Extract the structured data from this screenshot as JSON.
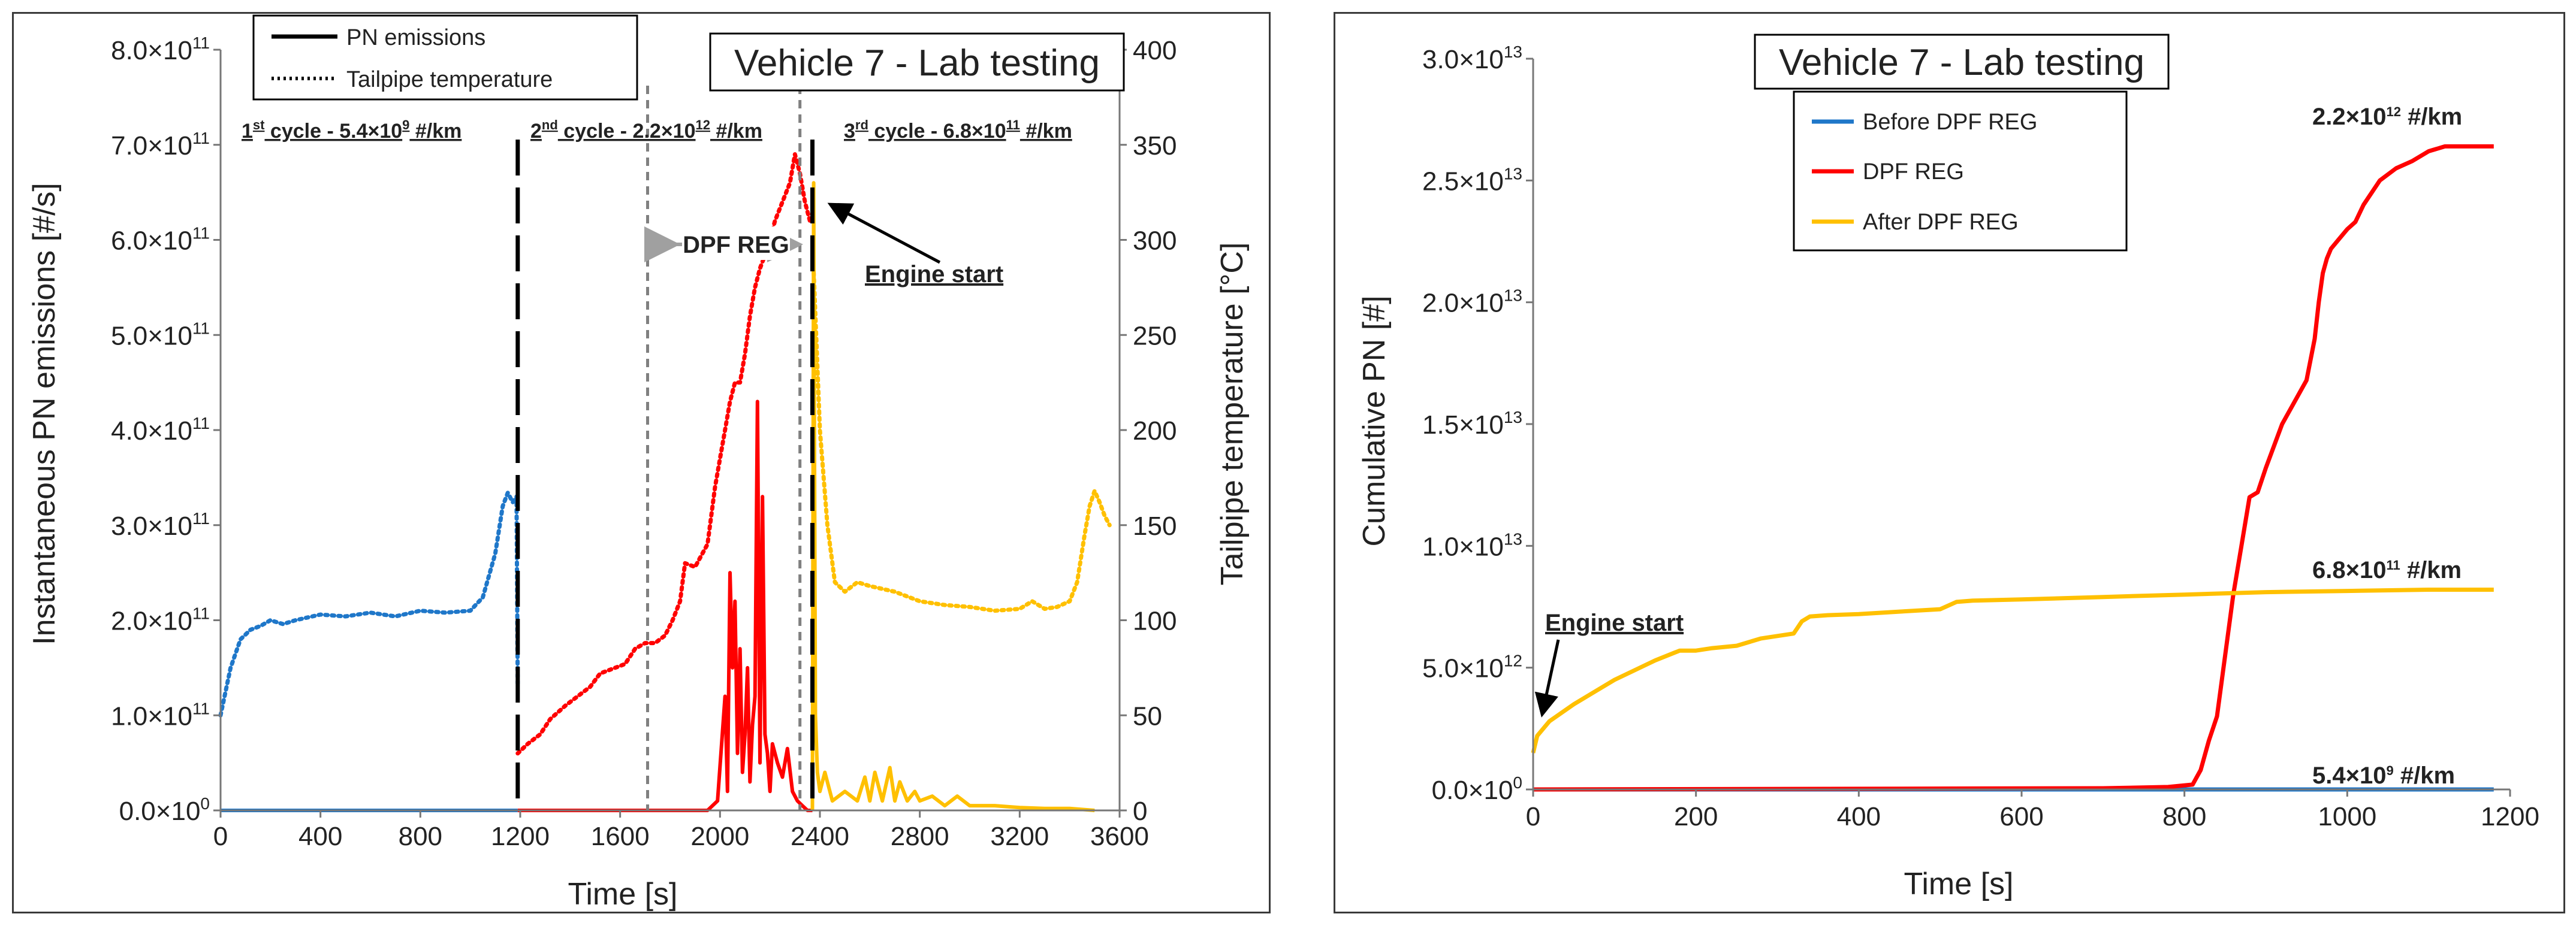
{
  "colors": {
    "blue": "#1f77c9",
    "red": "#ff0000",
    "yellow": "#ffc000",
    "black": "#000000",
    "gray": "#808080"
  },
  "chart_data": [
    {
      "type": "line",
      "title": "Vehicle 7 - Lab testing",
      "xlabel": "Time [s]",
      "ylabel": "Instantaneous PN emissions [#/s]",
      "y2label": "Tailpipe temperature [°C]",
      "xlim": [
        0,
        3600
      ],
      "ylim": [
        0,
        800000000000.0
      ],
      "y2lim": [
        0,
        400
      ],
      "x_ticks": [
        "0",
        "400",
        "800",
        "1200",
        "1600",
        "2000",
        "2400",
        "2800",
        "3200",
        "3600"
      ],
      "y_ticks": [
        {
          "m": "0.0×10",
          "e": "0"
        },
        {
          "m": "1.0×10",
          "e": "11"
        },
        {
          "m": "2.0×10",
          "e": "11"
        },
        {
          "m": "3.0×10",
          "e": "11"
        },
        {
          "m": "4.0×10",
          "e": "11"
        },
        {
          "m": "5.0×10",
          "e": "11"
        },
        {
          "m": "6.0×10",
          "e": "11"
        },
        {
          "m": "7.0×10",
          "e": "11"
        },
        {
          "m": "8.0×10",
          "e": "11"
        }
      ],
      "y2_ticks": [
        "0",
        "50",
        "100",
        "150",
        "200",
        "250",
        "300",
        "350",
        "400"
      ],
      "legend": [
        {
          "label": "PN emissions",
          "style": "solid"
        },
        {
          "label": "Tailpipe temperature",
          "style": "dotted"
        }
      ],
      "cycle_labels": [
        {
          "pre": "1",
          "sup": "st",
          "mid": " cycle - 5.4×10",
          "exp": "9",
          "post": " #/km",
          "color": "#1f77c9"
        },
        {
          "pre": "2",
          "sup": "nd",
          "mid": " cycle - 2.2×10",
          "exp": "12",
          "post": " #/km",
          "color": "#ff0000"
        },
        {
          "pre": "3",
          "sup": "rd",
          "mid": " cycle - 6.8×10",
          "exp": "11",
          "post": " #/km",
          "color": "#ffc000"
        }
      ],
      "annotations": {
        "dpf_reg": "DPF REG",
        "engine_start": "Engine start"
      },
      "cycle_boundaries": [
        1190,
        2370
      ],
      "dpf_reg_bounds": [
        1710,
        2320
      ],
      "series": [
        {
          "name": "PN emissions - 1st cycle",
          "axis": "y",
          "style": "solid",
          "color": "#1f77c9",
          "x": [
            0,
            1190
          ],
          "values": [
            0,
            0
          ]
        },
        {
          "name": "PN emissions - 2nd cycle",
          "axis": "y",
          "style": "solid",
          "color": "#ff0000",
          "x": [
            1190,
            1950,
            1990,
            2020,
            2030,
            2040,
            2050,
            2060,
            2070,
            2080,
            2090,
            2100,
            2110,
            2120,
            2130,
            2140,
            2150,
            2160,
            2170,
            2180,
            2190,
            2200,
            2210,
            2230,
            2250,
            2270,
            2290,
            2310,
            2330,
            2350,
            2370
          ],
          "values": [
            0,
            0,
            10000000000.0,
            120000000000.0,
            20000000000.0,
            250000000000.0,
            150000000000.0,
            220000000000.0,
            60000000000.0,
            170000000000.0,
            40000000000.0,
            80000000000.0,
            150000000000.0,
            30000000000.0,
            90000000000.0,
            120000000000.0,
            430000000000.0,
            50000000000.0,
            330000000000.0,
            80000000000.0,
            60000000000.0,
            20000000000.0,
            70000000000.0,
            50000000000.0,
            35000000000.0,
            65000000000.0,
            20000000000.0,
            10000000000.0,
            5000000000.0,
            0,
            0
          ]
        },
        {
          "name": "PN emissions - 3rd cycle",
          "axis": "y",
          "style": "solid",
          "color": "#ffc000",
          "x": [
            2370,
            2375,
            2378,
            2382,
            2390,
            2400,
            2420,
            2450,
            2500,
            2550,
            2580,
            2600,
            2620,
            2650,
            2680,
            2700,
            2720,
            2750,
            2780,
            2800,
            2850,
            2900,
            2950,
            3000,
            3100,
            3200,
            3300,
            3400,
            3500
          ],
          "values": [
            0,
            660000000000.0,
            400000000000.0,
            100000000000.0,
            40000000000.0,
            20000000000.0,
            40000000000.0,
            10000000000.0,
            20000000000.0,
            10000000000.0,
            35000000000.0,
            10000000000.0,
            40000000000.0,
            10000000000.0,
            45000000000.0,
            10000000000.0,
            30000000000.0,
            10000000000.0,
            20000000000.0,
            10000000000.0,
            15000000000.0,
            5000000000.0,
            15000000000.0,
            5000000000.0,
            5000000000.0,
            3000000000.0,
            2000000000.0,
            2000000000.0,
            0
          ]
        },
        {
          "name": "Tailpipe temperature - 1st cycle",
          "axis": "y2",
          "style": "dotted",
          "color": "#1f77c9",
          "x": [
            0,
            40,
            80,
            120,
            160,
            200,
            250,
            300,
            400,
            500,
            600,
            700,
            800,
            900,
            1000,
            1050,
            1100,
            1130,
            1150,
            1170,
            1185,
            1190
          ],
          "values": [
            50,
            75,
            90,
            95,
            97,
            100,
            98,
            100,
            103,
            102,
            104,
            102,
            105,
            104,
            105,
            112,
            135,
            160,
            167,
            162,
            165,
            65
          ]
        },
        {
          "name": "Tailpipe temperature - 2nd cycle",
          "axis": "y2",
          "style": "dotted",
          "color": "#ff0000",
          "x": [
            1190,
            1230,
            1280,
            1320,
            1380,
            1430,
            1480,
            1520,
            1580,
            1620,
            1660,
            1700,
            1740,
            1780,
            1810,
            1840,
            1860,
            1900,
            1950,
            1980,
            2000,
            2020,
            2040,
            2060,
            2080,
            2100,
            2120,
            2140,
            2160,
            2180,
            2200,
            2220,
            2250,
            2280,
            2300,
            2320,
            2340,
            2360
          ],
          "values": [
            30,
            35,
            40,
            48,
            55,
            60,
            65,
            72,
            75,
            77,
            85,
            88,
            88,
            92,
            100,
            110,
            130,
            128,
            140,
            170,
            185,
            200,
            215,
            225,
            225,
            240,
            260,
            275,
            285,
            292,
            300,
            310,
            320,
            330,
            345,
            335,
            320,
            310
          ]
        },
        {
          "name": "Tailpipe temperature - 3rd cycle",
          "axis": "y2",
          "style": "dotted",
          "color": "#ffc000",
          "x": [
            2370,
            2400,
            2430,
            2460,
            2500,
            2550,
            2600,
            2700,
            2800,
            2900,
            3000,
            3100,
            3200,
            3250,
            3300,
            3350,
            3400,
            3430,
            3460,
            3480,
            3500,
            3520,
            3540,
            3560
          ],
          "values": [
            300,
            200,
            150,
            120,
            115,
            120,
            118,
            115,
            110,
            108,
            107,
            105,
            106,
            110,
            106,
            107,
            110,
            120,
            145,
            160,
            168,
            162,
            155,
            150
          ]
        }
      ]
    },
    {
      "type": "line",
      "title": "Vehicle 7 - Lab testing",
      "xlabel": "Time [s]",
      "ylabel": "Cumulative PN [#]",
      "xlim": [
        0,
        1200
      ],
      "ylim": [
        0,
        30000000000000.0
      ],
      "x_ticks": [
        "0",
        "200",
        "400",
        "600",
        "800",
        "1000",
        "1200"
      ],
      "y_ticks": [
        {
          "m": "0.0×10",
          "e": "0"
        },
        {
          "m": "5.0×10",
          "e": "12"
        },
        {
          "m": "1.0×10",
          "e": "13"
        },
        {
          "m": "1.5×10",
          "e": "13"
        },
        {
          "m": "2.0×10",
          "e": "13"
        },
        {
          "m": "2.5×10",
          "e": "13"
        },
        {
          "m": "3.0×10",
          "e": "13"
        }
      ],
      "legend": [
        {
          "label": "Before DPF REG",
          "color": "#1f77c9"
        },
        {
          "label": "DPF REG",
          "color": "#ff0000"
        },
        {
          "label": "After DPF REG",
          "color": "#ffc000"
        }
      ],
      "end_labels": [
        {
          "m": "2.2×10",
          "e": "12",
          "u": " #/km",
          "color": "#ff0000"
        },
        {
          "m": "6.8×10",
          "e": "11",
          "u": " #/km",
          "color": "#ffc000"
        },
        {
          "m": "5.4×10",
          "e": "9",
          "u": " #/km",
          "color": "#1f77c9"
        }
      ],
      "annotations": {
        "engine_start": "Engine start"
      },
      "series": [
        {
          "name": "Before DPF REG",
          "color": "#1f77c9",
          "x": [
            0,
            1180
          ],
          "values": [
            0,
            0
          ]
        },
        {
          "name": "DPF REG",
          "color": "#ff0000",
          "x": [
            0,
            700,
            780,
            810,
            820,
            830,
            840,
            850,
            860,
            870,
            880,
            890,
            900,
            920,
            950,
            960,
            965,
            970,
            975,
            980,
            990,
            1000,
            1010,
            1020,
            1040,
            1060,
            1080,
            1100,
            1120,
            1180
          ],
          "values": [
            0,
            50000000000.0,
            100000000000.0,
            200000000000.0,
            800000000000.0,
            2000000000000.0,
            3000000000000.0,
            5500000000000.0,
            8000000000000.0,
            10000000000000.0,
            12000000000000.0,
            12200000000000.0,
            13200000000000.0,
            15000000000000.0,
            16800000000000.0,
            18500000000000.0,
            20000000000000.0,
            21200000000000.0,
            21800000000000.0,
            22200000000000.0,
            22600000000000.0,
            23000000000000.0,
            23300000000000.0,
            24000000000000.0,
            25000000000000.0,
            25500000000000.0,
            25800000000000.0,
            26200000000000.0,
            26400000000000.0,
            26400000000000.0
          ]
        },
        {
          "name": "After DPF REG",
          "color": "#ffc000",
          "x": [
            0,
            5,
            20,
            50,
            100,
            150,
            180,
            200,
            220,
            250,
            280,
            320,
            330,
            340,
            360,
            400,
            450,
            500,
            520,
            540,
            600,
            700,
            800,
            900,
            1000,
            1100,
            1180
          ],
          "values": [
            1500000000000.0,
            2200000000000.0,
            2800000000000.0,
            3500000000000.0,
            4500000000000.0,
            5300000000000.0,
            5700000000000.0,
            5700000000000.0,
            5800000000000.0,
            5900000000000.0,
            6200000000000.0,
            6400000000000.0,
            6900000000000.0,
            7100000000000.0,
            7150000000000.0,
            7200000000000.0,
            7300000000000.0,
            7400000000000.0,
            7700000000000.0,
            7750000000000.0,
            7800000000000.0,
            7900000000000.0,
            8000000000000.0,
            8100000000000.0,
            8150000000000.0,
            8200000000000.0,
            8200000000000.0
          ]
        }
      ]
    }
  ]
}
